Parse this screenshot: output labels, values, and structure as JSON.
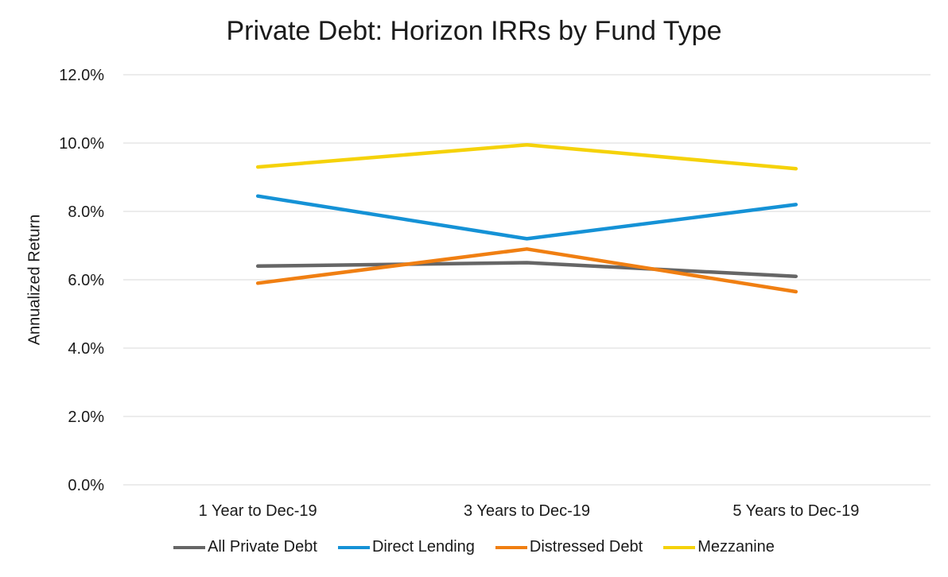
{
  "chart_data": {
    "type": "line",
    "title": "Private Debt: Horizon IRRs by Fund Type",
    "xlabel": "",
    "ylabel": "Annualized Return",
    "categories": [
      "1 Year to Dec-19",
      "3 Years to Dec-19",
      "5 Years to Dec-19"
    ],
    "ylim": [
      0,
      12
    ],
    "yticks": [
      0,
      2,
      4,
      6,
      8,
      10,
      12
    ],
    "ytick_labels": [
      "0.0%",
      "2.0%",
      "4.0%",
      "6.0%",
      "8.0%",
      "10.0%",
      "12.0%"
    ],
    "grid": true,
    "legend_position": "bottom",
    "series": [
      {
        "name": "All Private Debt",
        "color": "#666666",
        "values": [
          6.4,
          6.5,
          6.1
        ]
      },
      {
        "name": "Direct Lending",
        "color": "#1592d6",
        "values": [
          8.45,
          7.2,
          8.2
        ]
      },
      {
        "name": "Distressed Debt",
        "color": "#f07f12",
        "values": [
          5.9,
          6.9,
          5.65
        ]
      },
      {
        "name": "Mezzanine",
        "color": "#f5d20a",
        "values": [
          9.3,
          9.95,
          9.25
        ]
      }
    ]
  }
}
